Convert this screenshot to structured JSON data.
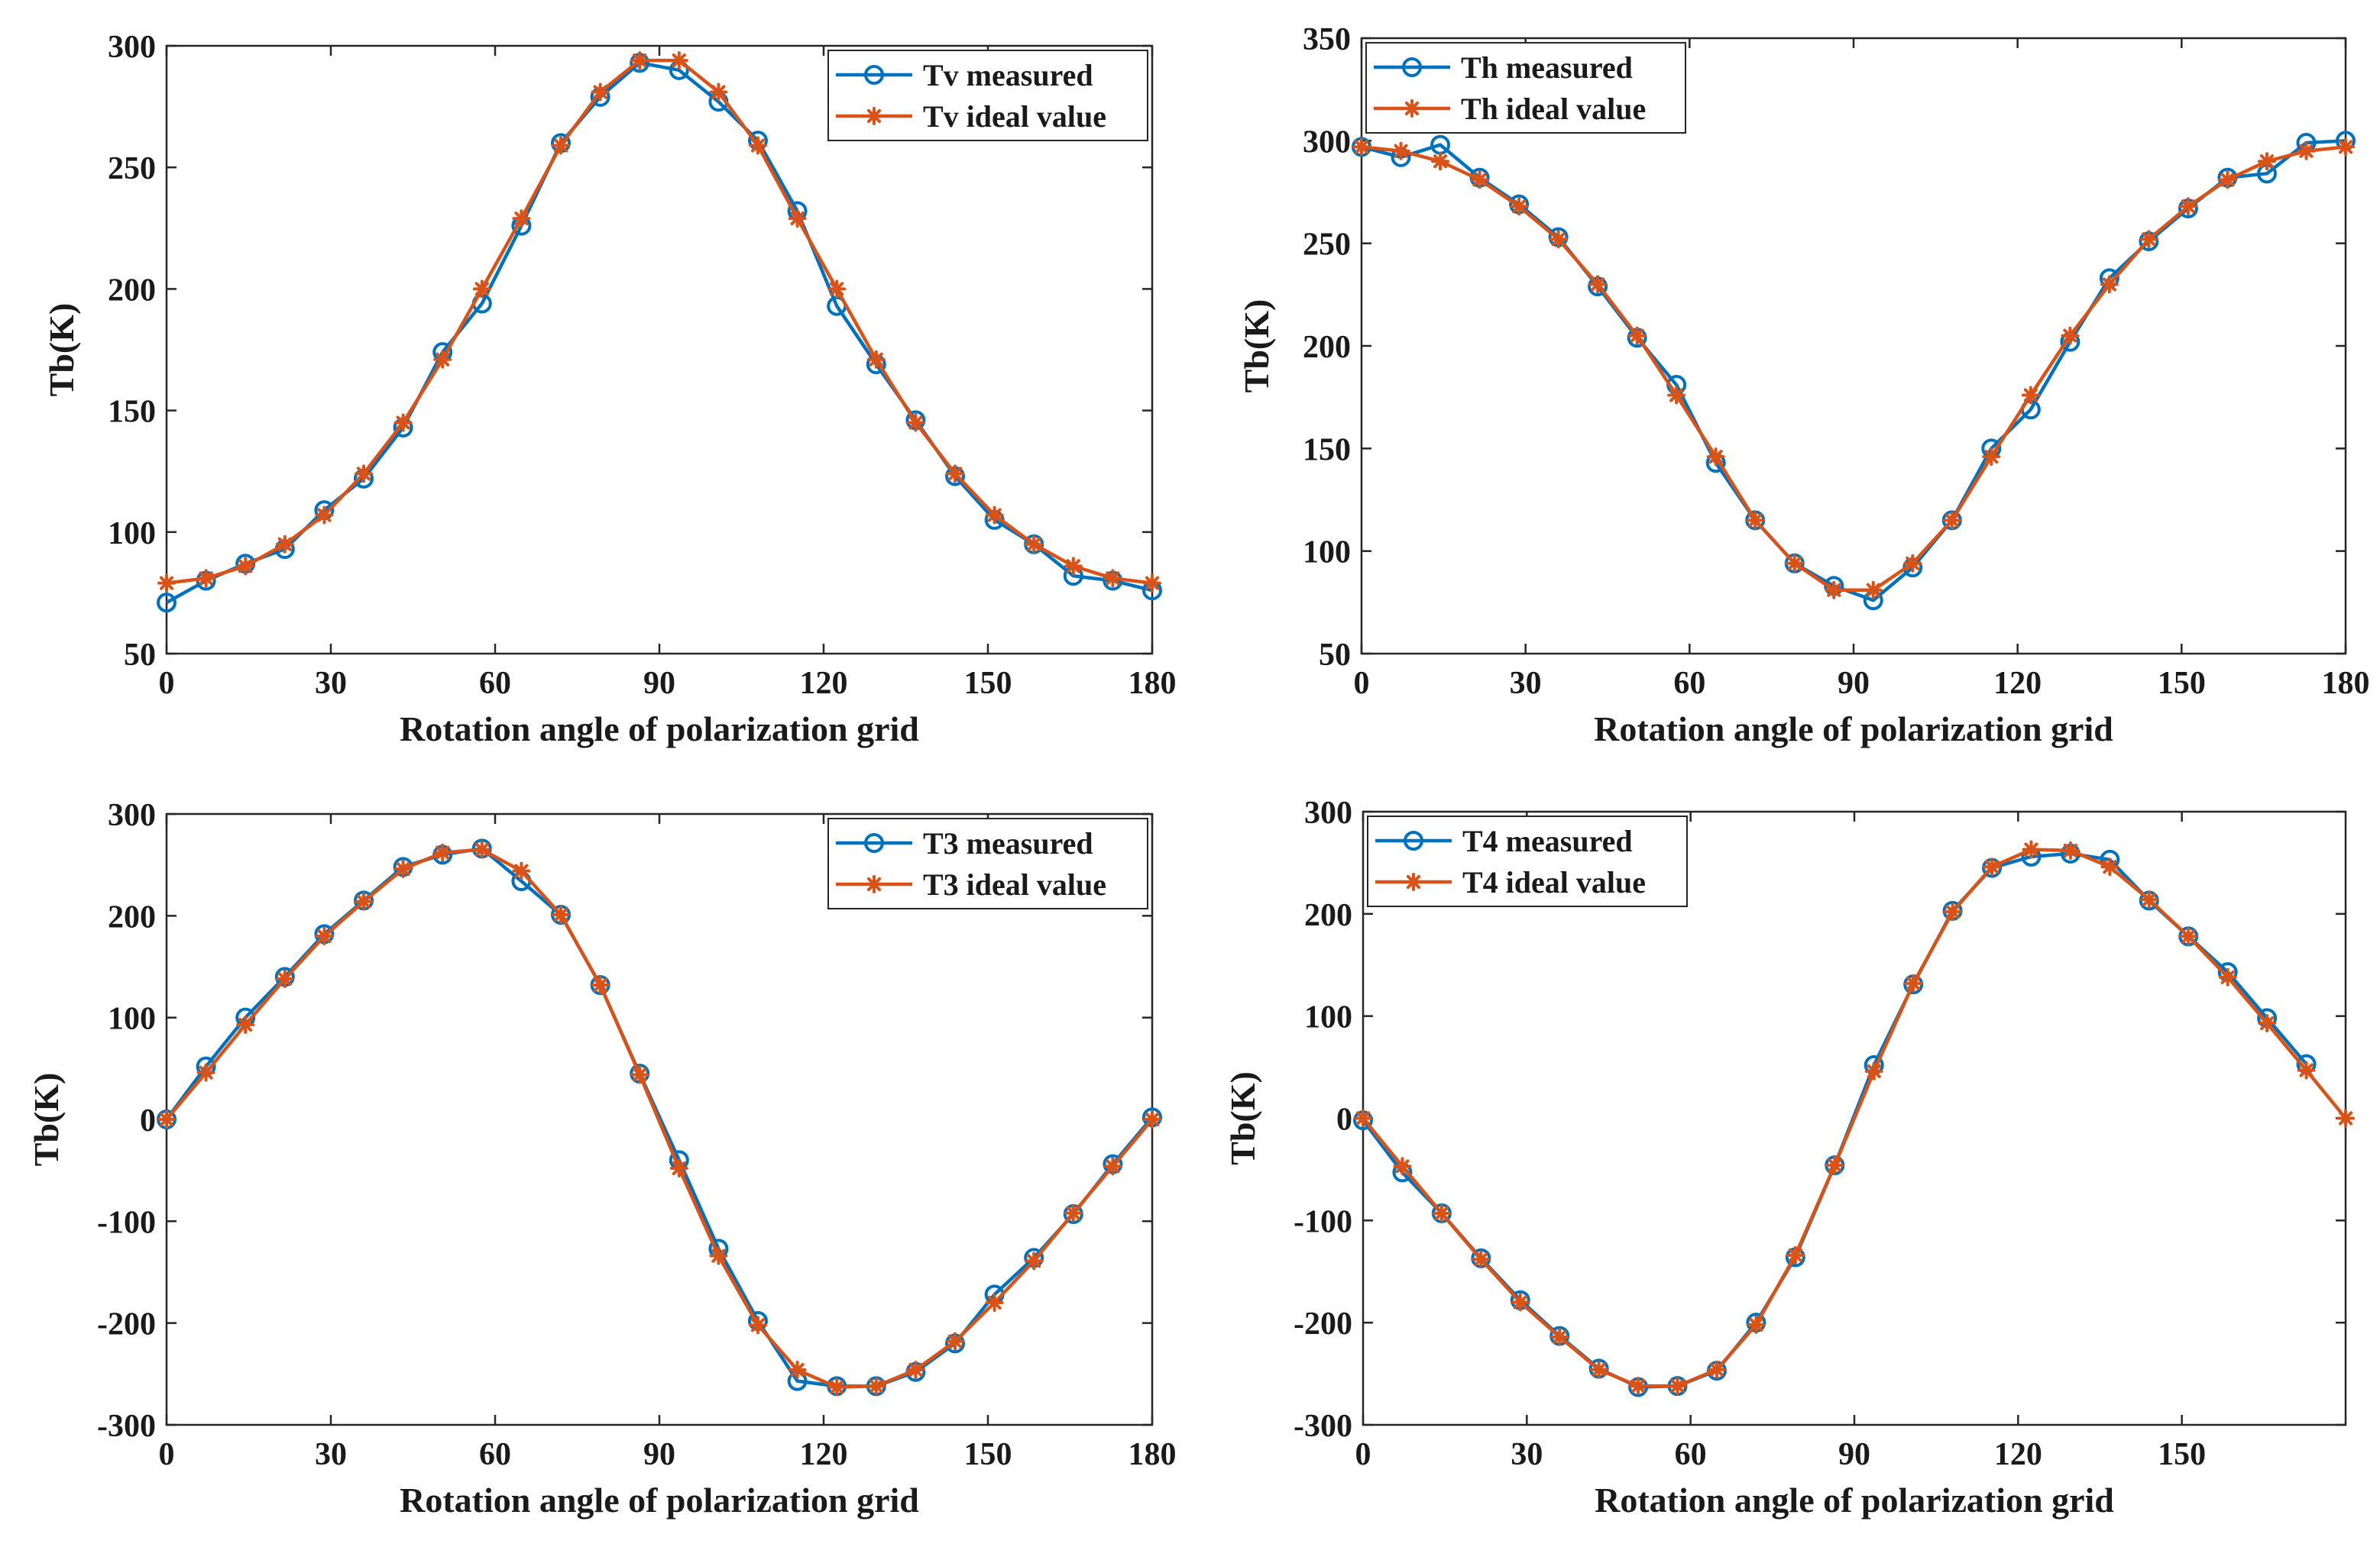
{
  "colors": {
    "measured": "#0072BD",
    "ideal": "#D95319",
    "axis": "#262626"
  },
  "chart_data": [
    {
      "type": "line",
      "xlabel": "Rotation angle of polarization grid",
      "ylabel": "Tb(K)",
      "xlim": [
        0,
        180
      ],
      "ylim": [
        50,
        300
      ],
      "xticks": [
        0,
        30,
        60,
        90,
        120,
        150,
        180
      ],
      "yticks": [
        50,
        100,
        150,
        200,
        250,
        300
      ],
      "legend_position": "top-right",
      "series": [
        {
          "name": "Tv measured",
          "marker": "circle",
          "color": "#0072BD",
          "x": [
            0,
            7.2,
            14.4,
            21.6,
            28.8,
            36,
            43.2,
            50.4,
            57.6,
            64.8,
            72,
            79.2,
            86.4,
            93.6,
            100.8,
            108,
            115.2,
            122.4,
            129.6,
            136.8,
            144,
            151.2,
            158.4,
            165.6,
            172.8,
            180
          ],
          "y": [
            71,
            80,
            87,
            93,
            109,
            122,
            143,
            174,
            194,
            226,
            260,
            279,
            293,
            290,
            277,
            261,
            232,
            193,
            169,
            146,
            123,
            105,
            95,
            82,
            80,
            76
          ]
        },
        {
          "name": "Tv ideal value",
          "marker": "star",
          "color": "#D95319",
          "x": [
            0,
            7.2,
            14.4,
            21.6,
            28.8,
            36,
            43.2,
            50.4,
            57.6,
            64.8,
            72,
            79.2,
            86.4,
            93.6,
            100.8,
            108,
            115.2,
            122.4,
            129.6,
            136.8,
            144,
            151.2,
            158.4,
            165.6,
            172.8,
            180
          ],
          "y": [
            79,
            81,
            86,
            95,
            107,
            124,
            145,
            171,
            200,
            229,
            259,
            281,
            294,
            294,
            281,
            259,
            229,
            200,
            171,
            145,
            124,
            107,
            95,
            86,
            81,
            79
          ]
        }
      ]
    },
    {
      "type": "line",
      "xlabel": "Rotation angle of polarization grid",
      "ylabel": "Tb(K)",
      "xlim": [
        0,
        180
      ],
      "ylim": [
        50,
        350
      ],
      "xticks": [
        0,
        30,
        60,
        90,
        120,
        150,
        180
      ],
      "yticks": [
        50,
        100,
        150,
        200,
        250,
        300,
        350
      ],
      "legend_position": "top-left",
      "series": [
        {
          "name": "Th measured",
          "marker": "circle",
          "color": "#0072BD",
          "x": [
            0,
            7.2,
            14.4,
            21.6,
            28.8,
            36,
            43.2,
            50.4,
            57.6,
            64.8,
            72,
            79.2,
            86.4,
            93.6,
            100.8,
            108,
            115.2,
            122.4,
            129.6,
            136.8,
            144,
            151.2,
            158.4,
            165.6,
            172.8,
            180
          ],
          "y": [
            297,
            292,
            298,
            282,
            269,
            253,
            229,
            204,
            181,
            143,
            115,
            94,
            83,
            76,
            92,
            115,
            150,
            169,
            202,
            233,
            251,
            267,
            282,
            284,
            299,
            300
          ]
        },
        {
          "name": "Th ideal value",
          "marker": "star",
          "color": "#D95319",
          "x": [
            0,
            7.2,
            14.4,
            21.6,
            28.8,
            36,
            43.2,
            50.4,
            57.6,
            64.8,
            72,
            79.2,
            86.4,
            93.6,
            100.8,
            108,
            115.2,
            122.4,
            129.6,
            136.8,
            144,
            151.2,
            158.4,
            165.6,
            172.8,
            180
          ],
          "y": [
            297,
            295,
            290,
            281,
            268,
            252,
            230,
            205,
            176,
            146,
            115,
            94,
            81,
            81,
            94,
            115,
            146,
            176,
            205,
            230,
            252,
            268,
            281,
            290,
            295,
            297
          ]
        }
      ]
    },
    {
      "type": "line",
      "xlabel": "Rotation angle of polarization grid",
      "ylabel": "Tb(K)",
      "xlim": [
        0,
        180
      ],
      "ylim": [
        -300,
        300
      ],
      "xticks": [
        0,
        30,
        60,
        90,
        120,
        150,
        180
      ],
      "yticks": [
        -300,
        -200,
        -100,
        0,
        100,
        200,
        300
      ],
      "legend_position": "top-right",
      "series": [
        {
          "name": "T3 measured",
          "marker": "circle",
          "color": "#0072BD",
          "x": [
            0,
            7.2,
            14.4,
            21.6,
            28.8,
            36,
            43.2,
            50.4,
            57.6,
            64.8,
            72,
            79.2,
            86.4,
            93.6,
            100.8,
            108,
            115.2,
            122.4,
            129.6,
            136.8,
            144,
            151.2,
            158.4,
            165.6,
            172.8,
            180
          ],
          "y": [
            0,
            52,
            100,
            140,
            182,
            215,
            248,
            260,
            266,
            234,
            201,
            132,
            45,
            -40,
            -127,
            -198,
            -257,
            -262,
            -262,
            -248,
            -220,
            -172,
            -136,
            -93,
            -44,
            2
          ]
        },
        {
          "name": "T3 ideal value",
          "marker": "star",
          "color": "#D95319",
          "x": [
            0,
            7.2,
            14.4,
            21.6,
            28.8,
            36,
            43.2,
            50.4,
            57.6,
            64.8,
            72,
            79.2,
            86.4,
            93.6,
            100.8,
            108,
            115.2,
            122.4,
            129.6,
            136.8,
            144,
            151.2,
            158.4,
            165.6,
            172.8,
            180
          ],
          "y": [
            0,
            46,
            93,
            138,
            180,
            214,
            246,
            262,
            265,
            244,
            201,
            132,
            44,
            -48,
            -134,
            -202,
            -246,
            -263,
            -262,
            -246,
            -218,
            -180,
            -139,
            -92,
            -46,
            0
          ]
        }
      ]
    },
    {
      "type": "line",
      "xlabel": "Rotation angle of polarization grid",
      "ylabel": "Tb(K)",
      "xlim": [
        0,
        180
      ],
      "ylim": [
        -300,
        300
      ],
      "xticks": [
        0,
        30,
        60,
        90,
        120,
        150
      ],
      "yticks": [
        -300,
        -200,
        -100,
        0,
        100,
        200,
        300
      ],
      "legend_position": "top-left",
      "series": [
        {
          "name": "T4 measured",
          "marker": "circle",
          "color": "#0072BD",
          "x": [
            0,
            7.2,
            14.4,
            21.6,
            28.8,
            36,
            43.2,
            50.4,
            57.6,
            64.8,
            72,
            79.2,
            86.4,
            93.6,
            100.8,
            108,
            115.2,
            122.4,
            129.6,
            136.8,
            144,
            151.2,
            158.4,
            165.6,
            172.8
          ],
          "y": [
            -2,
            -53,
            -93,
            -137,
            -178,
            -213,
            -245,
            -263,
            -262,
            -247,
            -200,
            -136,
            -46,
            52,
            131,
            203,
            245,
            256,
            259,
            253,
            213,
            178,
            143,
            98,
            53
          ]
        },
        {
          "name": "T4 ideal value",
          "marker": "star",
          "color": "#D95319",
          "x": [
            0,
            7.2,
            14.4,
            21.6,
            28.8,
            36,
            43.2,
            50.4,
            57.6,
            64.8,
            72,
            79.2,
            86.4,
            93.6,
            100.8,
            108,
            115.2,
            122.4,
            129.6,
            136.8,
            144,
            151.2,
            158.4,
            165.6,
            172.8,
            180
          ],
          "y": [
            0,
            -47,
            -93,
            -138,
            -180,
            -214,
            -246,
            -262,
            -262,
            -246,
            -202,
            -134,
            -46,
            46,
            132,
            202,
            246,
            263,
            262,
            246,
            214,
            178,
            138,
            93,
            47,
            0
          ]
        }
      ]
    }
  ]
}
